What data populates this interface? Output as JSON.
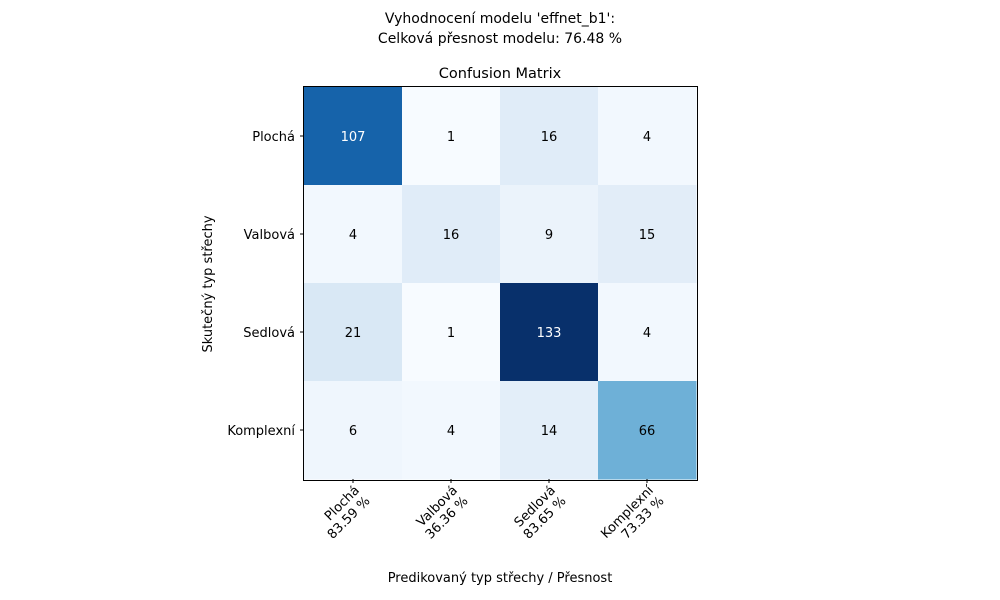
{
  "figure": {
    "suptitle_line1": "Vyhodnocení modelu 'effnet_b1':",
    "suptitle_line2": "Celková přesnost modelu: 76.48 %"
  },
  "chart_data": {
    "type": "heatmap",
    "title": "Confusion Matrix",
    "xlabel": "Predikovaný typ střechy / Přesnost",
    "ylabel": "Skutečný typ střechy",
    "rows": [
      "Plochá",
      "Valbová",
      "Sedlová",
      "Komplexní"
    ],
    "columns": [
      {
        "label": "Plochá",
        "accuracy": "83.59 %"
      },
      {
        "label": "Valbová",
        "accuracy": "36.36 %"
      },
      {
        "label": "Sedlová",
        "accuracy": "83.65 %"
      },
      {
        "label": "Komplexní",
        "accuracy": "73.33 %"
      }
    ],
    "values": [
      [
        107,
        1,
        16,
        4
      ],
      [
        4,
        16,
        9,
        15
      ],
      [
        21,
        1,
        133,
        4
      ],
      [
        6,
        4,
        14,
        66
      ]
    ],
    "colormap": "Blues",
    "value_range": [
      1,
      133
    ],
    "grid": false
  }
}
